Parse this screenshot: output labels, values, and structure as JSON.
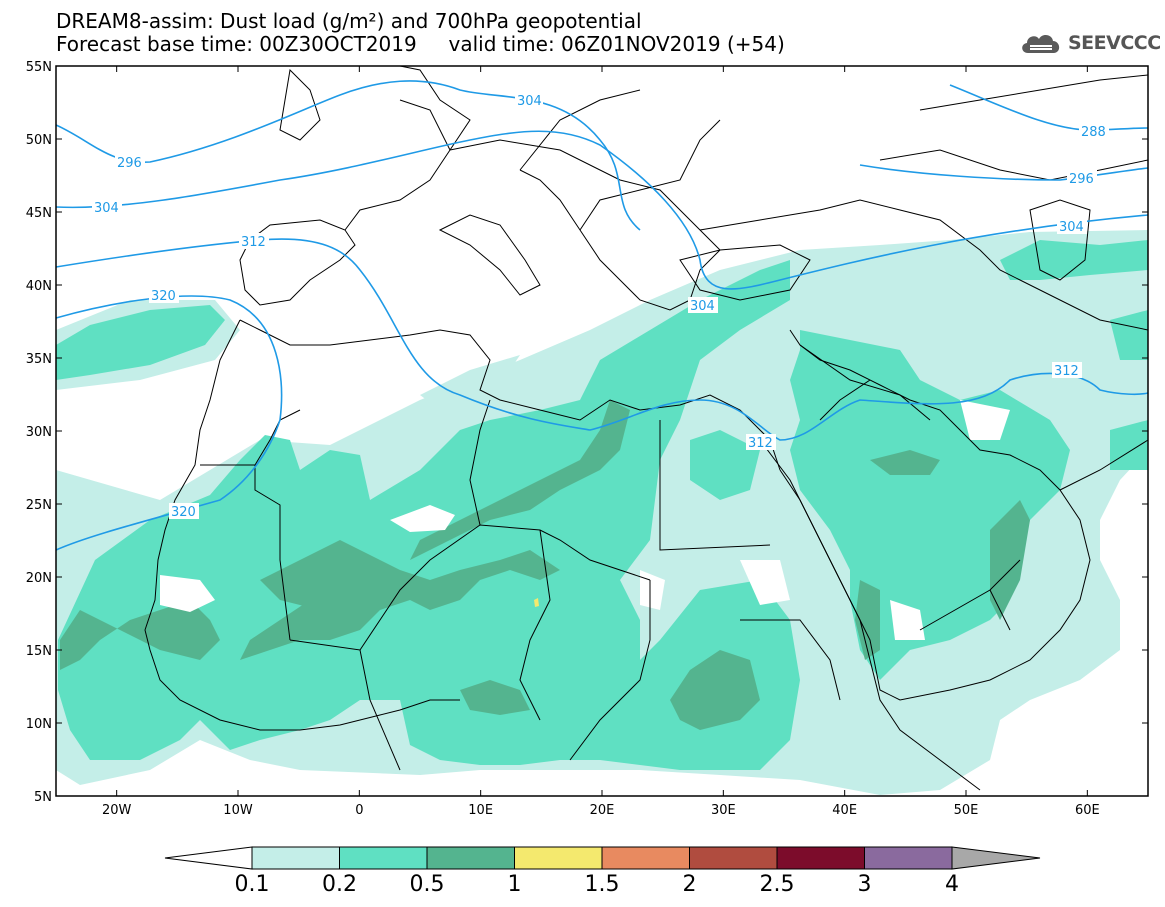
{
  "header": {
    "title_line1": "DREAM8-assim: Dust load (g/m²) and 700hPa geopotential",
    "title_line2": "Forecast base time: 00Z30OCT2019     valid time: 06Z01NOV2019 (+54)"
  },
  "logo": {
    "text": "SEEVCCC",
    "icon": "cloud-logo-icon"
  },
  "map": {
    "lon_range": [
      -25,
      65
    ],
    "lat_range": [
      5,
      55
    ],
    "lat_ticks": [
      "5N",
      "10N",
      "15N",
      "20N",
      "25N",
      "30N",
      "35N",
      "40N",
      "45N",
      "50N",
      "55N"
    ],
    "lon_ticks": [
      "20W",
      "10W",
      "0",
      "10E",
      "20E",
      "30E",
      "40E",
      "50E",
      "60E"
    ],
    "contour_color": "#1f9ae6",
    "geopotential_labels": [
      "304",
      "296",
      "304",
      "312",
      "320",
      "304",
      "312",
      "320",
      "288",
      "296",
      "304",
      "312"
    ]
  },
  "colorbar": {
    "labels": [
      "0.1",
      "0.2",
      "0.5",
      "1",
      "1.5",
      "2",
      "2.5",
      "3",
      "4"
    ],
    "colors": [
      "#c4eee8",
      "#5fe0c2",
      "#54b48f",
      "#f4e96e",
      "#e88a60",
      "#b04c3f",
      "#7c0c2b",
      "#8a6a9e",
      "#a8a8a8"
    ],
    "under_color": "#ffffff"
  }
}
